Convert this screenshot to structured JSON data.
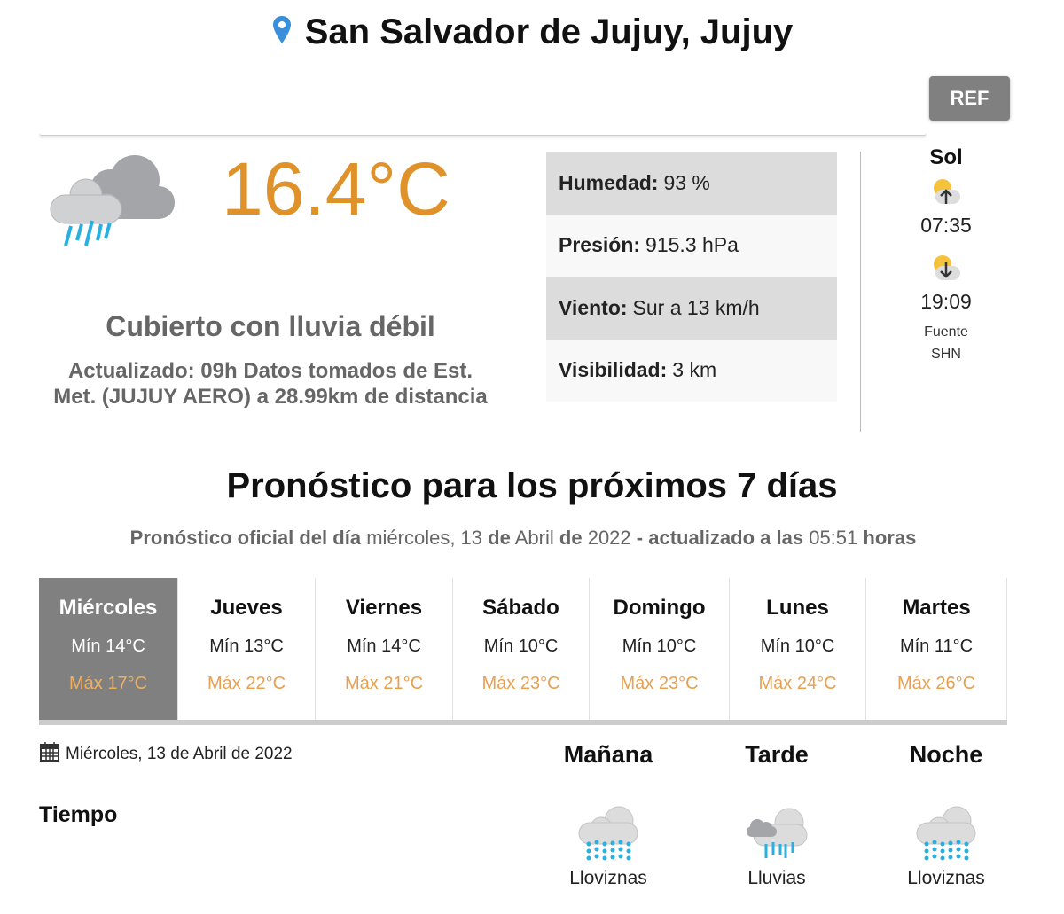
{
  "header": {
    "location": "San Salvador de Jujuy, Jujuy",
    "ref_label": "REF",
    "pin_icon": "map-pin-icon",
    "pin_color": "#3a8fd8"
  },
  "current": {
    "temperature": "16.4°C",
    "condition": "Cubierto con lluvia débil",
    "updated": "Actualizado: 09h Datos tomados de Est. Met. (JUJUY AERO) a 28.99km de distancia",
    "icon": "cloud-rain-icon",
    "temp_color": "#e0922a"
  },
  "stats": [
    {
      "label": "Humedad:",
      "value": "93 %"
    },
    {
      "label": "Presión:",
      "value": "915.3 hPa"
    },
    {
      "label": "Viento:",
      "value": "Sur a 13 km/h"
    },
    {
      "label": "Visibilidad:",
      "value": "3 km"
    }
  ],
  "sun": {
    "title": "Sol",
    "sunrise": "07:35",
    "sunset": "19:09",
    "source_label": "Fuente",
    "source": "SHN"
  },
  "forecast": {
    "title": "Pronóstico para los próximos 7 días",
    "subtitle": {
      "p1": "Pronóstico oficial del día",
      "day": "miércoles, 13",
      "p2": "de",
      "month": "Abril",
      "p3": "de",
      "year": "2022",
      "p4": "- actualizado a las",
      "time": "05:51",
      "p5": "horas"
    },
    "days": [
      {
        "name": "Miércoles",
        "min": "Mín 14°C",
        "max": "Máx 17°C",
        "selected": true
      },
      {
        "name": "Jueves",
        "min": "Mín 13°C",
        "max": "Máx 22°C"
      },
      {
        "name": "Viernes",
        "min": "Mín 14°C",
        "max": "Máx 21°C"
      },
      {
        "name": "Sábado",
        "min": "Mín 10°C",
        "max": "Máx 23°C"
      },
      {
        "name": "Domingo",
        "min": "Mín 10°C",
        "max": "Máx 23°C"
      },
      {
        "name": "Lunes",
        "min": "Mín 10°C",
        "max": "Máx 24°C"
      },
      {
        "name": "Martes",
        "min": "Mín 11°C",
        "max": "Máx 26°C"
      }
    ],
    "detail": {
      "date": "Miércoles, 13 de Abril de 2022",
      "row_label": "Tiempo",
      "periods": [
        {
          "name": "Mañana",
          "weather": "Lloviznas",
          "icon": "drizzle-icon"
        },
        {
          "name": "Tarde",
          "weather": "Lluvias",
          "icon": "rain-icon"
        },
        {
          "name": "Noche",
          "weather": "Lloviznas",
          "icon": "drizzle-icon"
        }
      ]
    }
  }
}
